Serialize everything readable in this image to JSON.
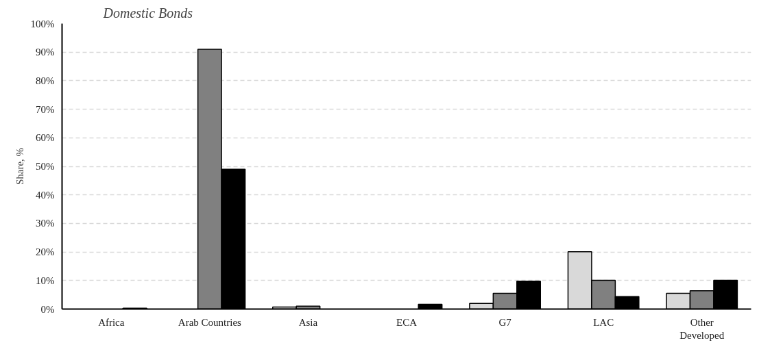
{
  "chart_data": {
    "type": "bar",
    "title": "Domestic Bonds",
    "ylabel": "Share, %",
    "categories": [
      "Africa",
      "Arab Countries",
      "Asia",
      "ECA",
      "G7",
      "LAC",
      "Other\nDeveloped"
    ],
    "series": [
      {
        "color": "#d9d9d9",
        "values": [
          null,
          null,
          0.7,
          null,
          2.0,
          20.1,
          5.5
        ]
      },
      {
        "color": "#808080",
        "values": [
          null,
          91,
          1.0,
          null,
          5.5,
          10.1,
          6.4
        ]
      },
      {
        "color": "#000000",
        "values": [
          0.3,
          49,
          null,
          1.7,
          9.8,
          4.4,
          10.1
        ]
      }
    ],
    "ylim": [
      0,
      100
    ],
    "yticks": [
      {
        "value": 0,
        "label": "0%"
      },
      {
        "value": 10,
        "label": "10%"
      },
      {
        "value": 20,
        "label": "20%"
      },
      {
        "value": 30,
        "label": "30%"
      },
      {
        "value": 40,
        "label": "40%"
      },
      {
        "value": 50,
        "label": "50%"
      },
      {
        "value": 60,
        "label": "60%"
      },
      {
        "value": 70,
        "label": "70%"
      },
      {
        "value": 80,
        "label": "80%"
      },
      {
        "value": 90,
        "label": "90%"
      },
      {
        "value": 100,
        "label": "100%"
      }
    ],
    "grid": "y"
  }
}
